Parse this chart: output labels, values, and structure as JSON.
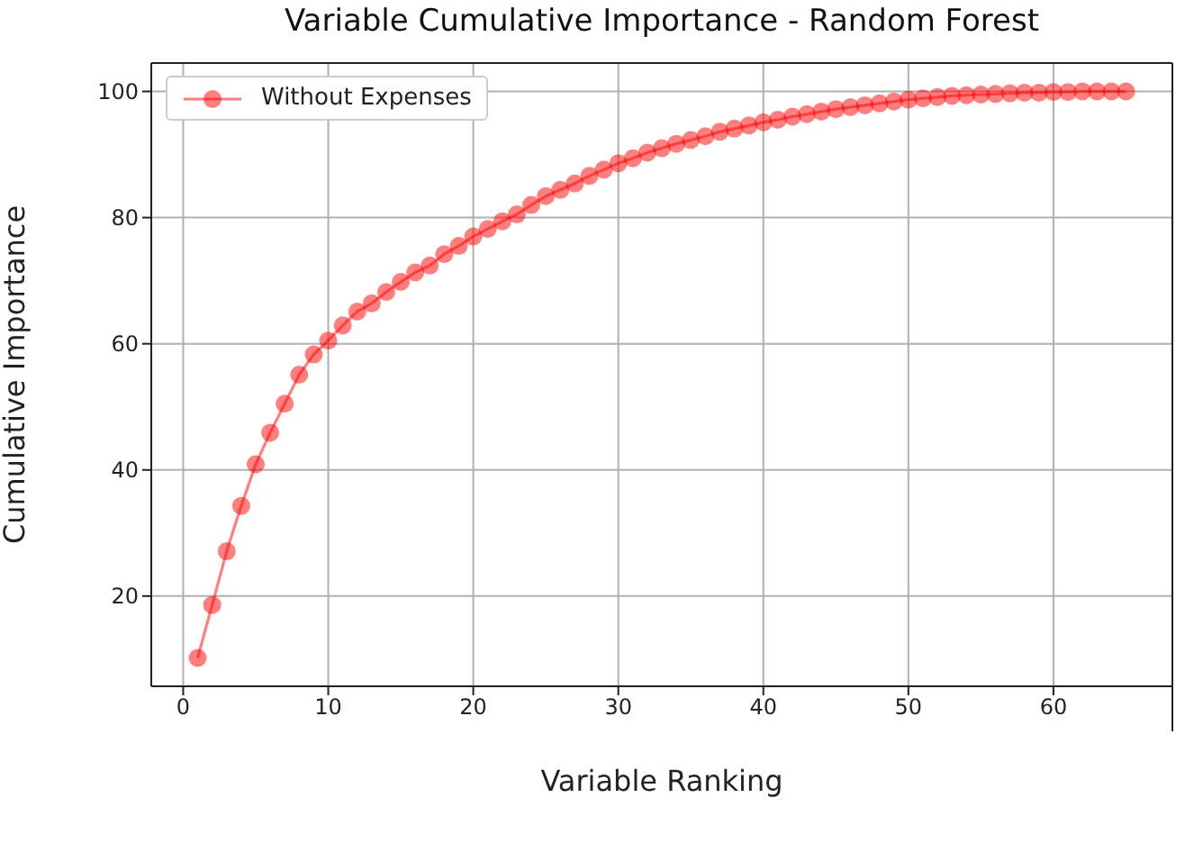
{
  "chart_data": {
    "type": "line",
    "title": "Variable Cumulative Importance - Random Forest",
    "xlabel": "Variable Ranking",
    "ylabel": "Cumulative Importance",
    "x": [
      1,
      2,
      3,
      4,
      5,
      6,
      7,
      8,
      9,
      10,
      11,
      12,
      13,
      14,
      15,
      16,
      17,
      18,
      19,
      20,
      21,
      22,
      23,
      24,
      25,
      26,
      27,
      28,
      29,
      30,
      31,
      32,
      33,
      34,
      35,
      36,
      37,
      38,
      39,
      40,
      41,
      42,
      43,
      44,
      45,
      46,
      47,
      48,
      49,
      50,
      51,
      52,
      53,
      54,
      55,
      56,
      57,
      58,
      59,
      60,
      61,
      62,
      63,
      64,
      65
    ],
    "series": [
      {
        "name": "Without Expenses",
        "color": "#ff0000",
        "values": [
          10.2,
          18.6,
          27.1,
          34.3,
          40.9,
          45.9,
          50.5,
          55.1,
          58.3,
          60.5,
          62.9,
          65.1,
          66.4,
          68.2,
          69.8,
          71.3,
          72.4,
          74.2,
          75.5,
          77.0,
          78.2,
          79.4,
          80.5,
          82.0,
          83.4,
          84.4,
          85.4,
          86.6,
          87.6,
          88.6,
          89.4,
          90.3,
          91.0,
          91.7,
          92.3,
          92.9,
          93.6,
          94.1,
          94.6,
          95.1,
          95.5,
          96.0,
          96.4,
          96.8,
          97.2,
          97.5,
          97.8,
          98.1,
          98.4,
          98.7,
          98.9,
          99.1,
          99.3,
          99.4,
          99.5,
          99.6,
          99.7,
          99.8,
          99.8,
          99.9,
          99.9,
          100,
          100,
          100,
          100
        ]
      }
    ],
    "xlim": [
      -2.2,
      68.2
    ],
    "xticks": [
      0,
      10,
      20,
      30,
      40,
      50,
      60
    ],
    "ylim": [
      5.7,
      104.5
    ],
    "yticks": [
      20,
      40,
      60,
      80,
      100
    ],
    "grid": true,
    "legend": "top left",
    "marker": "circle",
    "line_style": "solid"
  }
}
